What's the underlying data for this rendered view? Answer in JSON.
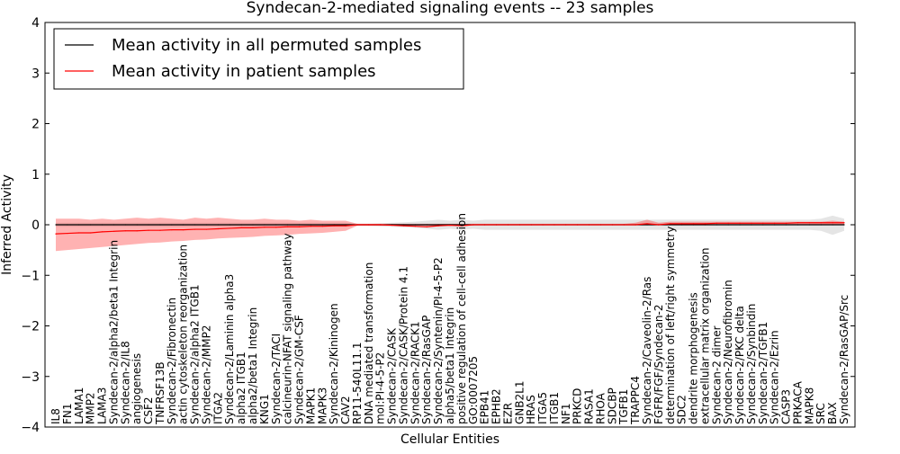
{
  "chart_data": {
    "type": "line",
    "title": "Syndecan-2-mediated signaling events -- 23 samples",
    "xlabel": "Cellular Entities",
    "ylabel": "Inferred Activity",
    "ylim": [
      -4,
      4
    ],
    "yticks": [
      -4,
      -3,
      -2,
      -1,
      0,
      1,
      2,
      3,
      4
    ],
    "legend_position": "top-left",
    "grid": false,
    "categories": [
      "IL8",
      "FN1",
      "LAMA1",
      "MMP2",
      "LAMA3",
      "Syndecan-2/alpha2/beta1 Integrin",
      "Syndecan-2/IL8",
      "angiogenesis",
      "CSF2",
      "TNFRSF13B",
      "Syndecan-2/Fibronectin",
      "actin cytoskeleton reorganization",
      "Syndecan-2/alpha2 ITGB1",
      "Syndecan-2/MMP2",
      "ITGA2",
      "Syndecan-2/Laminin alpha3",
      "alpha2 ITGB1",
      "alpha2/beta1 Integrin",
      "KNG1",
      "Syndecan-2/TACI",
      "calcineurin-NFAT signaling pathway",
      "Syndecan-2/GM-CSF",
      "MAPK1",
      "MAPK3",
      "Syndecan-2/Kininogen",
      "CAV2",
      "RP11-540L11.1",
      "DNA mediated transformation",
      "mol:PI-4-5-P2",
      "Syndecan-2/CASK",
      "Syndecan-2/CASK/Protein 4.1",
      "Syndecan-2/RACK1",
      "Syndecan-2/RasGAP",
      "Syndecan-2/Syntenin/PI-4-5-P2",
      "alpha5/beta1 Integrin",
      "positive regulation of cell-cell adhesion",
      "GO:0007205",
      "EPB41",
      "EPHB2",
      "EZR",
      "GNB2L1",
      "HRAS",
      "ITGA5",
      "ITGB1",
      "NF1",
      "PRKCD",
      "RASA1",
      "RHOA",
      "SDCBP",
      "TGFB1",
      "TRAPPC4",
      "Syndecan-2/Caveolin-2/Ras",
      "FGFR/FGF/Syndecan-2",
      "determination of left/right symmetry",
      "SDC2",
      "dendrite morphogenesis",
      "extracellular matrix organization",
      "Syndecan-2 dimer",
      "Syndecan-2/Neurofibromin",
      "Syndecan-2/PKC delta",
      "Syndecan-2/Synbindin",
      "Syndecan-2/TGFB1",
      "Syndecan-2/Ezrin",
      "CASP3",
      "PRKACA",
      "MAPK8",
      "SRC",
      "BAX",
      "Syndecan-2/RasGAP/Src"
    ],
    "series": [
      {
        "name": "Mean activity in all permuted samples",
        "color": "#000000",
        "values": [
          0,
          0,
          0,
          0,
          0,
          0,
          0,
          0,
          0,
          0,
          0,
          0,
          0,
          0,
          0,
          0,
          0,
          0,
          0,
          0,
          0,
          0,
          0,
          0,
          0,
          0,
          0,
          0,
          0,
          0,
          0,
          0,
          0,
          0,
          0,
          0,
          0,
          0,
          0,
          0,
          0,
          0,
          0,
          0,
          0,
          0,
          0,
          0,
          0,
          0,
          0,
          0,
          0,
          0,
          0,
          0,
          0,
          0,
          0,
          0,
          0,
          0,
          0,
          0,
          0,
          0,
          0,
          0,
          0
        ],
        "band_color": "#999999",
        "band_lower": [
          -0.04,
          -0.04,
          -0.04,
          -0.04,
          -0.04,
          -0.04,
          -0.04,
          -0.04,
          -0.04,
          -0.04,
          -0.04,
          -0.04,
          -0.04,
          -0.04,
          -0.04,
          -0.04,
          -0.04,
          -0.04,
          -0.04,
          -0.04,
          -0.04,
          -0.04,
          -0.04,
          -0.04,
          -0.04,
          -0.04,
          -0.02,
          -0.02,
          -0.03,
          -0.04,
          -0.05,
          -0.06,
          -0.08,
          -0.1,
          -0.08,
          -0.1,
          -0.08,
          -0.1,
          -0.1,
          -0.1,
          -0.1,
          -0.1,
          -0.1,
          -0.1,
          -0.1,
          -0.1,
          -0.1,
          -0.1,
          -0.1,
          -0.1,
          -0.1,
          -0.1,
          -0.1,
          -0.1,
          -0.1,
          -0.1,
          -0.1,
          -0.1,
          -0.1,
          -0.1,
          -0.1,
          -0.1,
          -0.1,
          -0.1,
          -0.1,
          -0.1,
          -0.12,
          -0.2,
          -0.12
        ],
        "band_upper": [
          0.04,
          0.04,
          0.04,
          0.04,
          0.04,
          0.04,
          0.04,
          0.04,
          0.04,
          0.04,
          0.04,
          0.04,
          0.04,
          0.04,
          0.04,
          0.04,
          0.04,
          0.04,
          0.04,
          0.04,
          0.04,
          0.04,
          0.04,
          0.04,
          0.04,
          0.04,
          0.02,
          0.02,
          0.03,
          0.04,
          0.05,
          0.06,
          0.08,
          0.1,
          0.08,
          0.1,
          0.08,
          0.1,
          0.1,
          0.1,
          0.1,
          0.1,
          0.1,
          0.1,
          0.1,
          0.1,
          0.1,
          0.1,
          0.1,
          0.1,
          0.1,
          0.1,
          0.1,
          0.1,
          0.1,
          0.1,
          0.1,
          0.1,
          0.1,
          0.1,
          0.1,
          0.1,
          0.1,
          0.1,
          0.1,
          0.1,
          0.12,
          0.18,
          0.12
        ]
      },
      {
        "name": "Mean activity in patient samples",
        "color": "#ff0000",
        "values": [
          -0.18,
          -0.17,
          -0.16,
          -0.16,
          -0.14,
          -0.13,
          -0.12,
          -0.12,
          -0.11,
          -0.11,
          -0.1,
          -0.1,
          -0.09,
          -0.09,
          -0.08,
          -0.07,
          -0.06,
          -0.06,
          -0.05,
          -0.05,
          -0.04,
          -0.04,
          -0.03,
          -0.03,
          -0.02,
          -0.02,
          0,
          0,
          0,
          -0.01,
          -0.02,
          -0.03,
          -0.04,
          -0.02,
          -0.01,
          -0.02,
          0,
          0,
          0,
          0,
          0,
          0,
          0,
          0,
          0,
          0,
          0,
          0,
          0,
          0,
          0,
          0.02,
          0,
          0.02,
          0.02,
          0.02,
          0.02,
          0.03,
          0.03,
          0.03,
          0.03,
          0.03,
          0.03,
          0.03,
          0.04,
          0.04,
          0.04,
          0.04,
          0.04
        ],
        "band_color": "#ff0000",
        "band_lower": [
          -0.52,
          -0.5,
          -0.48,
          -0.46,
          -0.44,
          -0.42,
          -0.4,
          -0.38,
          -0.36,
          -0.35,
          -0.33,
          -0.32,
          -0.3,
          -0.29,
          -0.27,
          -0.26,
          -0.25,
          -0.24,
          -0.22,
          -0.21,
          -0.2,
          -0.18,
          -0.17,
          -0.16,
          -0.14,
          -0.12,
          -0.02,
          -0.02,
          -0.02,
          -0.02,
          -0.02,
          -0.02,
          -0.02,
          -0.02,
          -0.02,
          -0.02,
          0,
          0,
          0,
          0,
          0,
          0,
          0,
          0,
          0,
          0,
          0,
          0,
          0,
          0,
          0,
          0,
          0,
          0,
          0,
          0,
          0,
          0,
          0,
          0,
          0,
          0,
          0,
          0,
          0,
          0,
          0,
          0,
          0
        ],
        "band_upper": [
          0.12,
          0.12,
          0.12,
          0.1,
          0.12,
          0.1,
          0.12,
          0.14,
          0.12,
          0.14,
          0.12,
          0.1,
          0.14,
          0.12,
          0.14,
          0.12,
          0.1,
          0.1,
          0.12,
          0.1,
          0.1,
          0.08,
          0.1,
          0.08,
          0.08,
          0.08,
          0.02,
          0.02,
          0.02,
          0.02,
          0.02,
          0.02,
          0.02,
          0.02,
          0.02,
          0.02,
          0.02,
          0.02,
          0.02,
          0.02,
          0.02,
          0.02,
          0.02,
          0.02,
          0.02,
          0.02,
          0.02,
          0.02,
          0.02,
          0.02,
          0.04,
          0.1,
          0.04,
          0.06,
          0.06,
          0.06,
          0.06,
          0.06,
          0.06,
          0.06,
          0.06,
          0.06,
          0.06,
          0.06,
          0.06,
          0.06,
          0.06,
          0.08,
          0.06
        ]
      }
    ]
  }
}
